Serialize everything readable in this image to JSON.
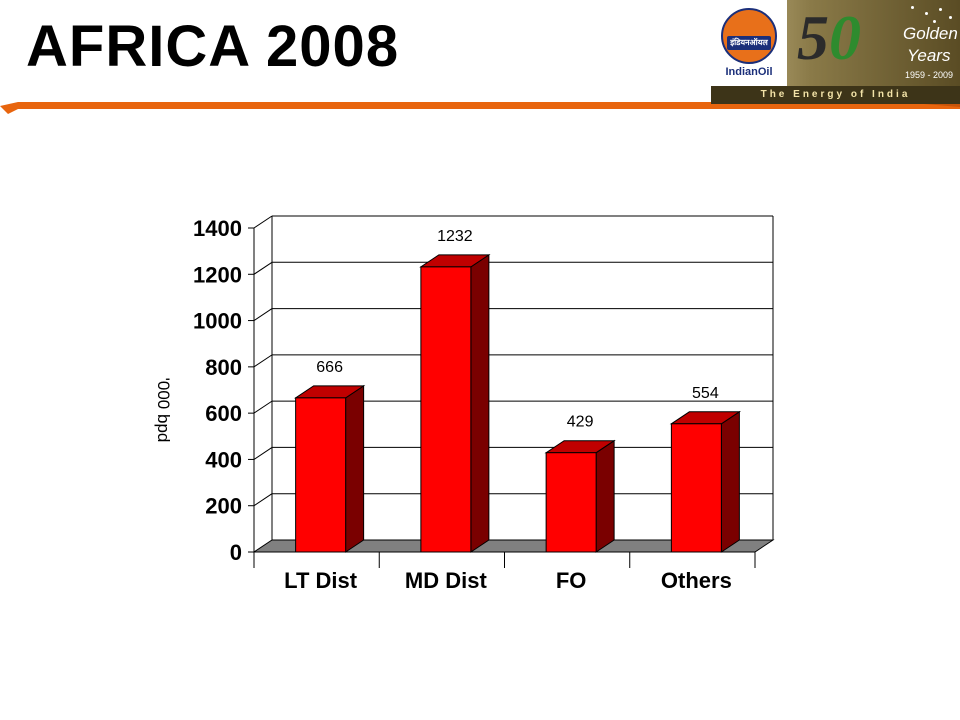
{
  "slide": {
    "title": "AFRICA 2008"
  },
  "logo": {
    "brand_hindi": "इंडियनऑयल",
    "brand_name": "IndianOil",
    "anniversary_five": "5",
    "anniversary_zero": "0",
    "golden": "Golden",
    "years": "Years",
    "year_range": "1959 - 2009",
    "tagline": "The Energy of India"
  },
  "colors": {
    "bar_front": "#ff0000",
    "bar_side": "#7a0000",
    "bar_top": "#c00000",
    "floor": "#808080",
    "accent_orange": "#e8650e"
  },
  "chart_data": {
    "type": "bar",
    "title": "",
    "xlabel": "",
    "ylabel": "'000 bpd",
    "categories": [
      "LT Dist",
      "MD Dist",
      "FO",
      "Others"
    ],
    "values": [
      666,
      1232,
      429,
      554
    ],
    "data_labels": [
      "666",
      "1232",
      "429",
      "554"
    ],
    "ylim": [
      0,
      1400
    ],
    "yticks": [
      0,
      200,
      400,
      600,
      800,
      1000,
      1200,
      1400
    ],
    "grid": true,
    "legend": "none",
    "style": "3d"
  }
}
